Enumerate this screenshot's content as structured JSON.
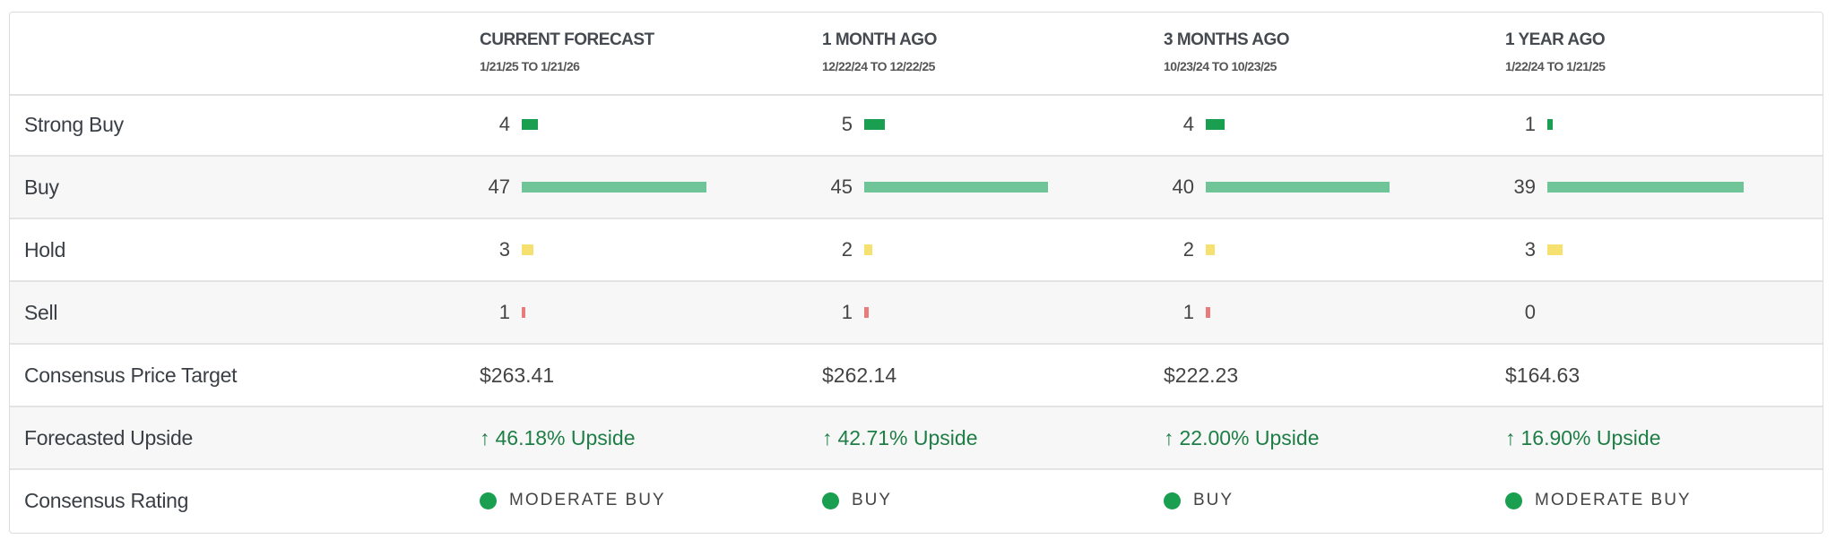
{
  "columns": [
    {
      "title": "CURRENT FORECAST",
      "dates": "1/21/25 TO 1/21/26"
    },
    {
      "title": "1 MONTH AGO",
      "dates": "12/22/24 TO 12/22/25"
    },
    {
      "title": "3 MONTHS AGO",
      "dates": "10/23/24 TO 10/23/25"
    },
    {
      "title": "1 YEAR AGO",
      "dates": "1/22/24 TO 1/21/25"
    }
  ],
  "rating_rows": [
    {
      "label": "Strong Buy",
      "color": "#1a9e50",
      "values": [
        "4",
        "5",
        "4",
        "1"
      ]
    },
    {
      "label": "Buy",
      "color": "#6fc597",
      "values": [
        "47",
        "45",
        "40",
        "39"
      ]
    },
    {
      "label": "Hold",
      "color": "#f6e070",
      "values": [
        "3",
        "2",
        "2",
        "3"
      ]
    },
    {
      "label": "Sell",
      "color": "#e87b7b",
      "values": [
        "1",
        "1",
        "1",
        "0"
      ]
    }
  ],
  "price_target": {
    "label": "Consensus Price Target",
    "values": [
      "$263.41",
      "$262.14",
      "$222.23",
      "$164.63"
    ]
  },
  "upside": {
    "label": "Forecasted Upside",
    "arrow": "↑",
    "values": [
      "46.18% Upside",
      "42.71% Upside",
      "22.00% Upside",
      "16.90% Upside"
    ]
  },
  "consensus": {
    "label": "Consensus Rating",
    "values": [
      "MODERATE BUY",
      "BUY",
      "BUY",
      "MODERATE BUY"
    ],
    "dot_color": "#1a9e50"
  }
}
